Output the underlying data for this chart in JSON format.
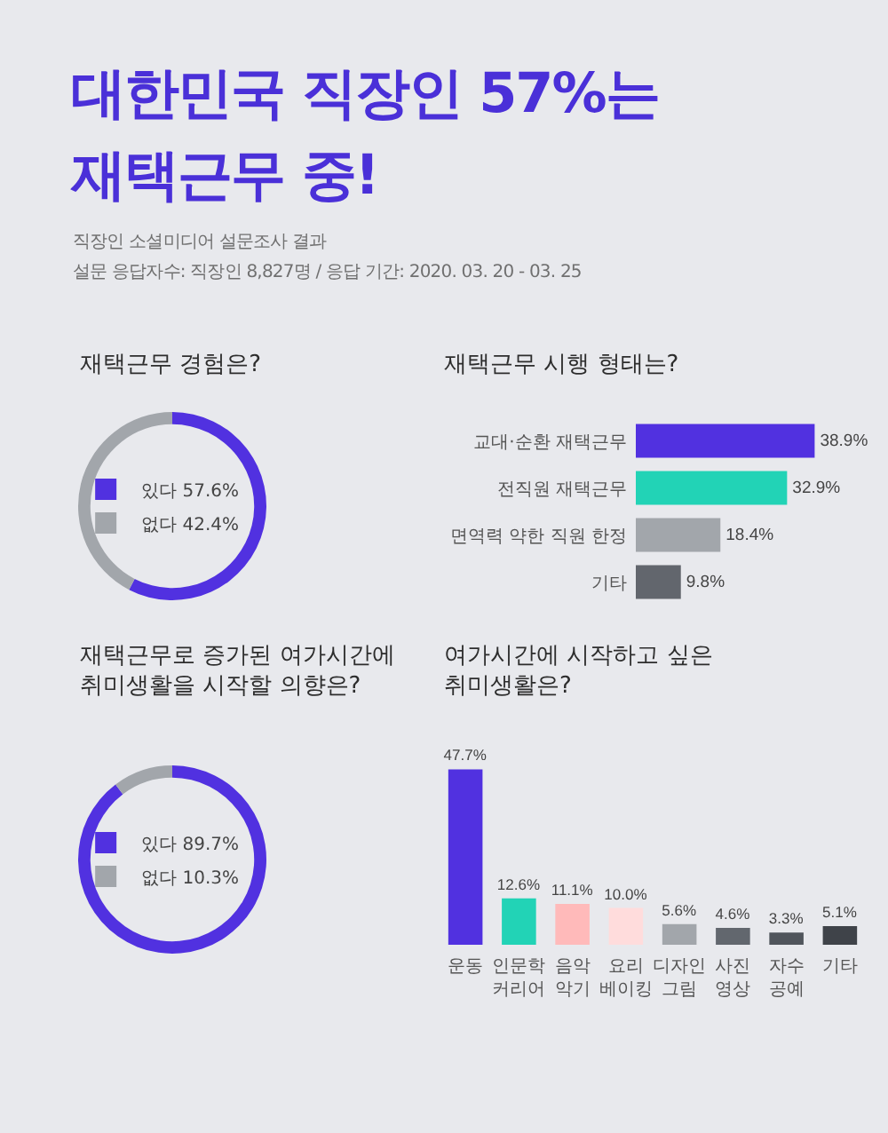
{
  "chart_data": [
    {
      "type": "other",
      "title": "대한민국 직장인 57%는\n재택근무 중!",
      "annotations": [
        "직장인 소셜미디어 설문조사 결과",
        "설문 응답자수: 직장인 8,827명 / 응답 기간: 2020. 03. 20 - 03. 25"
      ]
    },
    {
      "type": "donut",
      "title": "재택근무 경험은?",
      "categories": [
        "있다",
        "없다"
      ],
      "values": [
        57.6,
        42.4
      ],
      "colors": [
        "#5131e0",
        "#a2a6ab"
      ],
      "value_labels": [
        "57.6%",
        "42.4%"
      ],
      "legend": "center"
    },
    {
      "type": "bar",
      "orientation": "horizontal",
      "title": "재택근무 시행 형태는?",
      "categories": [
        "교대·순환 재택근무",
        "전직원 재택근무",
        "면역력 약한 직원 한정",
        "기타"
      ],
      "values": [
        38.9,
        32.9,
        18.4,
        9.8
      ],
      "colors": [
        "#5131e0",
        "#22d3b6",
        "#a2a6ab",
        "#62666d"
      ],
      "value_labels": [
        "38.9%",
        "32.9%",
        "18.4%",
        "9.8%"
      ],
      "tick_labels": "y"
    },
    {
      "type": "donut",
      "title": "재택근무로 증가된 여가시간에\n취미생활을 시작할 의향은?",
      "categories": [
        "있다",
        "없다"
      ],
      "values": [
        89.7,
        10.3
      ],
      "colors": [
        "#5131e0",
        "#a2a6ab"
      ],
      "value_labels": [
        "89.7%",
        "10.3%"
      ],
      "legend": "center"
    },
    {
      "type": "bar",
      "title": "여가시간에 시작하고 싶은\n취미생활은?",
      "categories": [
        "운동",
        "인문학\n커리어",
        "음악\n악기",
        "요리\n베이킹",
        "디자인\n그림",
        "사진\n영상",
        "자수\n공예",
        "기타"
      ],
      "values": [
        47.7,
        12.6,
        11.1,
        10.0,
        5.6,
        4.6,
        3.3,
        5.1
      ],
      "colors": [
        "#5131e0",
        "#22d3b6",
        "#ffbaba",
        "#ffdcdc",
        "#a2a6ab",
        "#62676e",
        "#50555c",
        "#3f4349"
      ],
      "value_labels": [
        "47.7%",
        "12.6%",
        "11.1%",
        "10.0%",
        "5.6%",
        "4.6%",
        "3.3%",
        "5.1%"
      ],
      "tick_labels": "x"
    }
  ]
}
